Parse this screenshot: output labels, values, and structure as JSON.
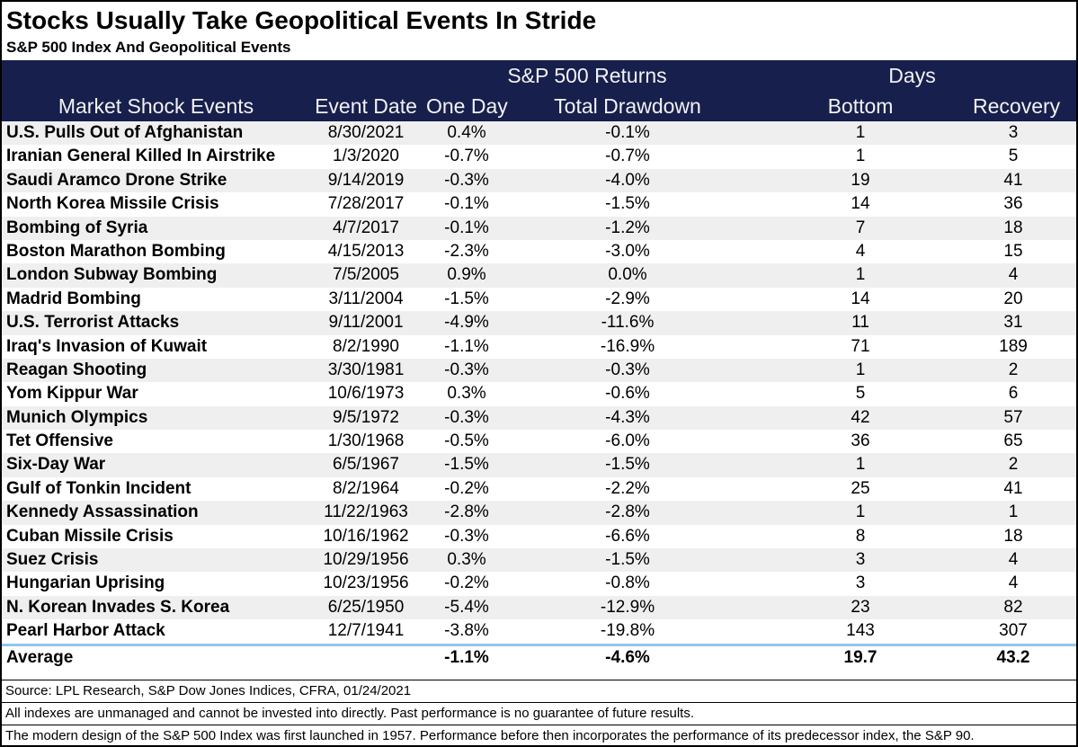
{
  "chart_data": {
    "type": "table",
    "title": "Stocks Usually Take Geopolitical Events In Stride",
    "subtitle": "S&P 500 Index And Geopolitical Events",
    "group_headers": {
      "returns": "S&P 500 Returns",
      "days": "Days"
    },
    "columns": [
      "Market Shock Events",
      "Event Date",
      "One Day",
      "Total Drawdown",
      "Bottom",
      "Recovery"
    ],
    "rows": [
      [
        "U.S. Pulls Out of Afghanistan",
        "8/30/2021",
        "0.4%",
        "-0.1%",
        "1",
        "3"
      ],
      [
        "Iranian General Killed In Airstrike",
        "1/3/2020",
        "-0.7%",
        "-0.7%",
        "1",
        "5"
      ],
      [
        "Saudi Aramco Drone Strike",
        "9/14/2019",
        "-0.3%",
        "-4.0%",
        "19",
        "41"
      ],
      [
        "North Korea Missile Crisis",
        "7/28/2017",
        "-0.1%",
        "-1.5%",
        "14",
        "36"
      ],
      [
        "Bombing of Syria",
        "4/7/2017",
        "-0.1%",
        "-1.2%",
        "7",
        "18"
      ],
      [
        "Boston Marathon Bombing",
        "4/15/2013",
        "-2.3%",
        "-3.0%",
        "4",
        "15"
      ],
      [
        "London Subway Bombing",
        "7/5/2005",
        "0.9%",
        "0.0%",
        "1",
        "4"
      ],
      [
        "Madrid Bombing",
        "3/11/2004",
        "-1.5%",
        "-2.9%",
        "14",
        "20"
      ],
      [
        "U.S. Terrorist Attacks",
        "9/11/2001",
        "-4.9%",
        "-11.6%",
        "11",
        "31"
      ],
      [
        "Iraq's Invasion of Kuwait",
        "8/2/1990",
        "-1.1%",
        "-16.9%",
        "71",
        "189"
      ],
      [
        "Reagan Shooting",
        "3/30/1981",
        "-0.3%",
        "-0.3%",
        "1",
        "2"
      ],
      [
        "Yom Kippur War",
        "10/6/1973",
        "0.3%",
        "-0.6%",
        "5",
        "6"
      ],
      [
        "Munich Olympics",
        "9/5/1972",
        "-0.3%",
        "-4.3%",
        "42",
        "57"
      ],
      [
        "Tet Offensive",
        "1/30/1968",
        "-0.5%",
        "-6.0%",
        "36",
        "65"
      ],
      [
        "Six-Day War",
        "6/5/1967",
        "-1.5%",
        "-1.5%",
        "1",
        "2"
      ],
      [
        "Gulf of Tonkin Incident",
        "8/2/1964",
        "-0.2%",
        "-2.2%",
        "25",
        "41"
      ],
      [
        "Kennedy Assassination",
        "11/22/1963",
        "-2.8%",
        "-2.8%",
        "1",
        "1"
      ],
      [
        "Cuban Missile Crisis",
        "10/16/1962",
        "-0.3%",
        "-6.6%",
        "8",
        "18"
      ],
      [
        "Suez Crisis",
        "10/29/1956",
        "0.3%",
        "-1.5%",
        "3",
        "4"
      ],
      [
        "Hungarian Uprising",
        "10/23/1956",
        "-0.2%",
        "-0.8%",
        "3",
        "4"
      ],
      [
        "N. Korean Invades S. Korea",
        "6/25/1950",
        "-5.4%",
        "-12.9%",
        "23",
        "82"
      ],
      [
        "Pearl Harbor Attack",
        "12/7/1941",
        "-3.8%",
        "-19.8%",
        "143",
        "307"
      ]
    ],
    "average_row": [
      "Average",
      "",
      "-1.1%",
      "-4.6%",
      "19.7",
      "43.2"
    ],
    "source": "Source: LPL Research, S&P Dow Jones Indices, CFRA, 01/24/2021",
    "notes": [
      "All indexes are unmanaged and cannot be invested into directly.  Past performance is no guarantee of future results.",
      "The modern design of the S&P 500 Index was first launched in 1957. Performance before then incorporates the performance of its predecessor index, the S&P 90."
    ],
    "layout_hints": {
      "row_striping": "odd rows light gray",
      "average_separator": "light blue rule above average row"
    }
  },
  "colors": {
    "header_navy": "#171f4d",
    "header_text": "#f2f2f2",
    "stripe_gray": "#efefef",
    "separator_blue": "#8fc7e9",
    "text_black": "#000000"
  }
}
